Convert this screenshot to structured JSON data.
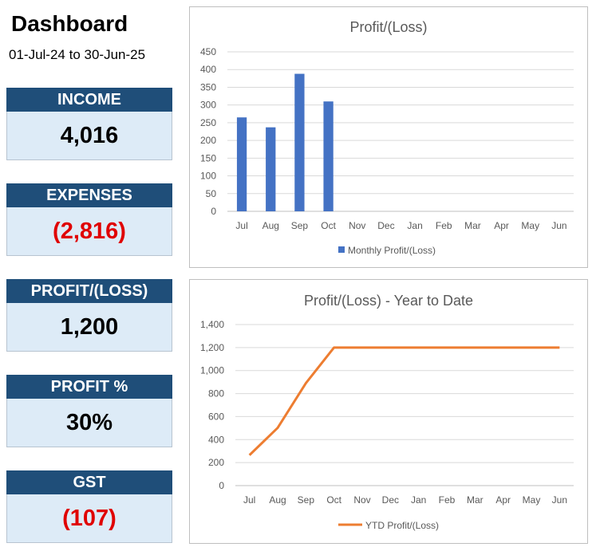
{
  "header": {
    "title": "Dashboard",
    "period": "01-Jul-24 to 30-Jun-25"
  },
  "kpis": [
    {
      "label": "INCOME",
      "value": "4,016",
      "negative": false
    },
    {
      "label": "EXPENSES",
      "value": "(2,816)",
      "negative": true
    },
    {
      "label": "PROFIT/(LOSS)",
      "value": "1,200",
      "negative": false
    },
    {
      "label": "PROFIT %",
      "value": "30%",
      "negative": false
    },
    {
      "label": "GST",
      "value": "(107)",
      "negative": true
    }
  ],
  "colors": {
    "kpi_header": "#1f4e79",
    "kpi_body": "#ddebf7",
    "negative": "#e00000",
    "bar": "#4472c4",
    "line": "#ed7d31"
  },
  "chart_data": [
    {
      "type": "bar",
      "title": "Profit/(Loss)",
      "categories": [
        "Jul",
        "Aug",
        "Sep",
        "Oct",
        "Nov",
        "Dec",
        "Jan",
        "Feb",
        "Mar",
        "Apr",
        "May",
        "Jun"
      ],
      "series": [
        {
          "name": "Monthly Profit/(Loss)",
          "values": [
            265,
            237,
            388,
            310,
            null,
            null,
            null,
            null,
            null,
            null,
            null,
            null
          ]
        }
      ],
      "ylim": [
        0,
        450
      ],
      "yticks": [
        "0",
        "50",
        "100",
        "150",
        "200",
        "250",
        "300",
        "350",
        "400",
        "450"
      ],
      "grid": true,
      "legend": "bottom"
    },
    {
      "type": "line",
      "title": "Profit/(Loss) - Year to Date",
      "categories": [
        "Jul",
        "Aug",
        "Sep",
        "Oct",
        "Nov",
        "Dec",
        "Jan",
        "Feb",
        "Mar",
        "Apr",
        "May",
        "Jun"
      ],
      "series": [
        {
          "name": "YTD Profit/(Loss)",
          "values": [
            265,
            502,
            890,
            1200,
            1200,
            1200,
            1200,
            1200,
            1200,
            1200,
            1200,
            1200
          ]
        }
      ],
      "ylim": [
        0,
        1400
      ],
      "yticks": [
        "0",
        "200",
        "400",
        "600",
        "800",
        "1,000",
        "1,200",
        "1,400"
      ],
      "grid": true,
      "legend": "bottom"
    }
  ]
}
